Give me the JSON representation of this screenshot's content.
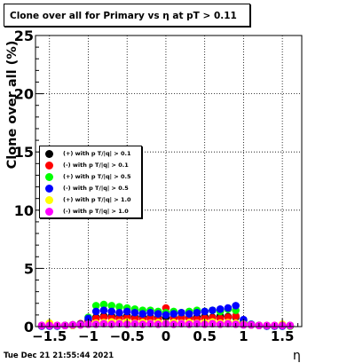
{
  "chart_data": {
    "type": "scatter",
    "title": "Clone  over all for Primary vs   η at pT > 0.11",
    "xlabel": "η",
    "ylabel": "Clone  over all (%)",
    "xlim": [
      -1.68,
      1.75
    ],
    "ylim": [
      0,
      25
    ],
    "xticks": [
      -1.5,
      -1,
      -0.5,
      0,
      0.5,
      1,
      1.5
    ],
    "xtick_labels": [
      "−1.5",
      "−1",
      "−0.5",
      "0",
      "0.5",
      "1",
      "1.5"
    ],
    "yticks": [
      0,
      5,
      10,
      15,
      20,
      25
    ],
    "ytick_labels": [
      "0",
      "5",
      "10",
      "15",
      "20",
      "25"
    ],
    "grid": true,
    "legend_position": "left-middle",
    "series": [
      {
        "name": "(+) with p T/|q| > 0.1",
        "color": "#000000",
        "points": [
          [
            -1.6,
            0.05
          ],
          [
            -1.5,
            0.05
          ],
          [
            -1.4,
            0.05
          ],
          [
            -1.3,
            0.1
          ],
          [
            -1.2,
            0.15
          ],
          [
            -1.1,
            0.2
          ],
          [
            -1.0,
            0.5
          ],
          [
            -0.9,
            0.8
          ],
          [
            -0.8,
            0.9
          ],
          [
            -0.7,
            0.9
          ],
          [
            -0.6,
            0.85
          ],
          [
            -0.5,
            0.9
          ],
          [
            -0.4,
            0.8
          ],
          [
            -0.3,
            0.85
          ],
          [
            -0.2,
            0.8
          ],
          [
            -0.1,
            0.75
          ],
          [
            0.0,
            0.8
          ],
          [
            0.1,
            0.75
          ],
          [
            0.2,
            0.8
          ],
          [
            0.3,
            0.75
          ],
          [
            0.4,
            0.8
          ],
          [
            0.5,
            0.85
          ],
          [
            0.6,
            0.8
          ],
          [
            0.7,
            0.9
          ],
          [
            0.8,
            0.85
          ],
          [
            0.9,
            0.8
          ],
          [
            1.0,
            0.3
          ],
          [
            1.1,
            0.15
          ],
          [
            1.2,
            0.1
          ],
          [
            1.3,
            0.05
          ],
          [
            1.4,
            0.05
          ],
          [
            1.5,
            0.05
          ],
          [
            1.6,
            0.05
          ]
        ]
      },
      {
        "name": "(-) with p T/|q| > 0.1",
        "color": "#ff0000",
        "points": [
          [
            -1.6,
            0.05
          ],
          [
            -1.5,
            0.05
          ],
          [
            -1.4,
            0.1
          ],
          [
            -1.3,
            0.1
          ],
          [
            -1.2,
            0.15
          ],
          [
            -1.1,
            0.25
          ],
          [
            -1.0,
            0.5
          ],
          [
            -0.9,
            0.7
          ],
          [
            -0.8,
            0.8
          ],
          [
            -0.7,
            0.75
          ],
          [
            -0.6,
            0.7
          ],
          [
            -0.5,
            0.75
          ],
          [
            -0.4,
            0.7
          ],
          [
            -0.3,
            0.65
          ],
          [
            -0.2,
            0.7
          ],
          [
            -0.1,
            0.65
          ],
          [
            0.0,
            1.6
          ],
          [
            0.1,
            0.7
          ],
          [
            0.2,
            0.75
          ],
          [
            0.3,
            0.7
          ],
          [
            0.4,
            0.65
          ],
          [
            0.5,
            0.7
          ],
          [
            0.6,
            0.75
          ],
          [
            0.7,
            0.7
          ],
          [
            0.8,
            0.8
          ],
          [
            0.9,
            0.9
          ],
          [
            1.0,
            0.35
          ],
          [
            1.1,
            0.2
          ],
          [
            1.2,
            0.1
          ],
          [
            1.3,
            0.05
          ],
          [
            1.4,
            0.05
          ],
          [
            1.5,
            0.05
          ],
          [
            1.6,
            0.05
          ]
        ]
      },
      {
        "name": "(+) with p T/|q| > 0.5",
        "color": "#00ff00",
        "points": [
          [
            -1.6,
            0.05
          ],
          [
            -1.5,
            0.05
          ],
          [
            -1.4,
            0.05
          ],
          [
            -1.3,
            0.1
          ],
          [
            -1.2,
            0.1
          ],
          [
            -1.1,
            0.2
          ],
          [
            -1.0,
            0.8
          ],
          [
            -0.9,
            1.8
          ],
          [
            -0.8,
            1.9
          ],
          [
            -0.7,
            1.8
          ],
          [
            -0.6,
            1.7
          ],
          [
            -0.5,
            1.6
          ],
          [
            -0.4,
            1.5
          ],
          [
            -0.3,
            1.4
          ],
          [
            -0.2,
            1.4
          ],
          [
            -0.1,
            1.3
          ],
          [
            0.0,
            1.2
          ],
          [
            0.1,
            1.3
          ],
          [
            0.2,
            1.2
          ],
          [
            0.3,
            1.3
          ],
          [
            0.4,
            1.4
          ],
          [
            0.5,
            1.3
          ],
          [
            0.6,
            1.4
          ],
          [
            0.7,
            1.3
          ],
          [
            0.8,
            1.5
          ],
          [
            0.9,
            1.4
          ],
          [
            1.0,
            0.5
          ],
          [
            1.1,
            0.2
          ],
          [
            1.2,
            0.1
          ],
          [
            1.3,
            0.05
          ],
          [
            1.4,
            0.05
          ],
          [
            1.5,
            0.05
          ],
          [
            1.6,
            0.05
          ]
        ]
      },
      {
        "name": "(-) with p T/|q| > 0.5",
        "color": "#0000ff",
        "points": [
          [
            -1.6,
            0.05
          ],
          [
            -1.5,
            0.05
          ],
          [
            -1.4,
            0.05
          ],
          [
            -1.3,
            0.1
          ],
          [
            -1.2,
            0.1
          ],
          [
            -1.1,
            0.2
          ],
          [
            -1.0,
            0.7
          ],
          [
            -0.9,
            1.3
          ],
          [
            -0.8,
            1.4
          ],
          [
            -0.7,
            1.3
          ],
          [
            -0.6,
            1.2
          ],
          [
            -0.5,
            1.3
          ],
          [
            -0.4,
            1.2
          ],
          [
            -0.3,
            1.1
          ],
          [
            -0.2,
            1.2
          ],
          [
            -0.1,
            1.1
          ],
          [
            0.0,
            1.0
          ],
          [
            0.1,
            1.1
          ],
          [
            0.2,
            1.2
          ],
          [
            0.3,
            1.1
          ],
          [
            0.4,
            1.2
          ],
          [
            0.5,
            1.3
          ],
          [
            0.6,
            1.4
          ],
          [
            0.7,
            1.5
          ],
          [
            0.8,
            1.6
          ],
          [
            0.9,
            1.8
          ],
          [
            1.0,
            0.6
          ],
          [
            1.1,
            0.2
          ],
          [
            1.2,
            0.1
          ],
          [
            1.3,
            0.05
          ],
          [
            1.4,
            0.05
          ],
          [
            1.5,
            0.05
          ],
          [
            1.6,
            0.1
          ]
        ]
      },
      {
        "name": "(+) with p T/|q| > 1.0",
        "color": "#ffff00",
        "points": [
          [
            -1.6,
            0.1
          ],
          [
            -1.5,
            0.3
          ],
          [
            -1.4,
            0.1
          ],
          [
            -1.3,
            0.1
          ],
          [
            -1.2,
            0.1
          ],
          [
            -1.1,
            0.15
          ],
          [
            -1.0,
            0.2
          ],
          [
            -0.9,
            0.3
          ],
          [
            -0.8,
            0.35
          ],
          [
            -0.7,
            0.4
          ],
          [
            -0.6,
            0.35
          ],
          [
            -0.5,
            0.4
          ],
          [
            -0.4,
            0.3
          ],
          [
            -0.3,
            0.35
          ],
          [
            -0.2,
            0.3
          ],
          [
            -0.1,
            0.35
          ],
          [
            0.0,
            0.3
          ],
          [
            0.1,
            0.35
          ],
          [
            0.2,
            0.3
          ],
          [
            0.3,
            0.35
          ],
          [
            0.4,
            0.3
          ],
          [
            0.5,
            0.35
          ],
          [
            0.6,
            0.4
          ],
          [
            0.7,
            0.3
          ],
          [
            0.8,
            0.35
          ],
          [
            0.9,
            0.3
          ],
          [
            1.0,
            0.2
          ],
          [
            1.1,
            0.15
          ],
          [
            1.2,
            0.1
          ],
          [
            1.3,
            0.1
          ],
          [
            1.4,
            0.1
          ],
          [
            1.5,
            0.2
          ],
          [
            1.6,
            0.1
          ]
        ]
      },
      {
        "name": "(-) with p T/|q| > 1.0",
        "color": "#ff00ff",
        "points": [
          [
            -1.6,
            0.1
          ],
          [
            -1.5,
            0.1
          ],
          [
            -1.4,
            0.1
          ],
          [
            -1.3,
            0.1
          ],
          [
            -1.2,
            0.15
          ],
          [
            -1.1,
            0.15
          ],
          [
            -1.0,
            0.2
          ],
          [
            -0.9,
            0.2
          ],
          [
            -0.8,
            0.25
          ],
          [
            -0.7,
            0.2
          ],
          [
            -0.6,
            0.25
          ],
          [
            -0.5,
            0.2
          ],
          [
            -0.4,
            0.25
          ],
          [
            -0.3,
            0.2
          ],
          [
            -0.2,
            0.25
          ],
          [
            -0.1,
            0.2
          ],
          [
            0.0,
            0.25
          ],
          [
            0.1,
            0.2
          ],
          [
            0.2,
            0.25
          ],
          [
            0.3,
            0.2
          ],
          [
            0.4,
            0.25
          ],
          [
            0.5,
            0.2
          ],
          [
            0.6,
            0.25
          ],
          [
            0.7,
            0.2
          ],
          [
            0.8,
            0.25
          ],
          [
            0.9,
            0.2
          ],
          [
            1.0,
            0.15
          ],
          [
            1.1,
            0.15
          ],
          [
            1.2,
            0.1
          ],
          [
            1.3,
            0.1
          ],
          [
            1.4,
            0.1
          ],
          [
            1.5,
            0.1
          ],
          [
            1.6,
            0.1
          ]
        ]
      }
    ]
  },
  "timestamp": "Tue Dec 21 21:55:44 2021"
}
